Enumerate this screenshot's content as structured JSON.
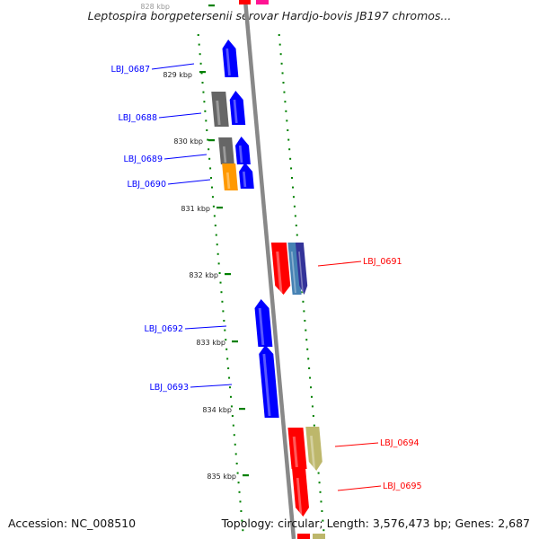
{
  "title": "Leptospira borgpetersenii serovar Hardjo-bovis JB197 chromos...",
  "accession": "Accession: NC_008510",
  "topology": "Topology: circular; Length: 3,576,473 bp; Genes: 2,687",
  "ticks": [
    {
      "label": "828 kbp",
      "color": "#999999"
    },
    {
      "label": "829 kbp",
      "color": "#222222"
    },
    {
      "label": "830 kbp",
      "color": "#222222"
    },
    {
      "label": "831 kbp",
      "color": "#222222"
    },
    {
      "label": "832 kbp",
      "color": "#222222"
    },
    {
      "label": "833 kbp",
      "color": "#222222"
    },
    {
      "label": "834 kbp",
      "color": "#222222"
    },
    {
      "label": "835 kbp",
      "color": "#222222"
    }
  ],
  "genes": [
    {
      "label": "LBJ_0687",
      "color": "#0000ff",
      "side": "left"
    },
    {
      "label": "LBJ_0688",
      "color": "#0000ff",
      "side": "left"
    },
    {
      "label": "LBJ_0689",
      "color": "#0000ff",
      "side": "left"
    },
    {
      "label": "LBJ_0690",
      "color": "#0000ff",
      "side": "left"
    },
    {
      "label": "LBJ_0691",
      "color": "#ff0000",
      "side": "right"
    },
    {
      "label": "LBJ_0692",
      "color": "#0000ff",
      "side": "left"
    },
    {
      "label": "LBJ_0693",
      "color": "#0000ff",
      "side": "left"
    },
    {
      "label": "LBJ_0694",
      "color": "#ff0000",
      "side": "right"
    },
    {
      "label": "LBJ_0695",
      "color": "#ff0000",
      "side": "right"
    }
  ],
  "colors": {
    "forward_strand": "#0000ff",
    "reverse_strand": "#ff0000",
    "backbone": "#888888",
    "tick_marks": "#008000",
    "gray_feature": "#666666",
    "orange_feature": "#ff9900",
    "steel_feature": "#4682b4",
    "navy_feature": "#333399",
    "khaki_feature": "#bdb76b",
    "pink_feature": "#ff1493"
  }
}
